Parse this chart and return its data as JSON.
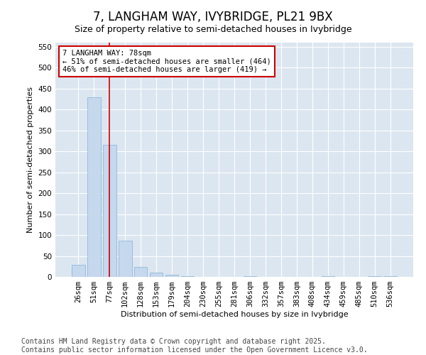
{
  "title": "7, LANGHAM WAY, IVYBRIDGE, PL21 9BX",
  "subtitle": "Size of property relative to semi-detached houses in Ivybridge",
  "xlabel": "Distribution of semi-detached houses by size in Ivybridge",
  "ylabel": "Number of semi-detached properties",
  "categories": [
    "26sqm",
    "51sqm",
    "77sqm",
    "102sqm",
    "128sqm",
    "153sqm",
    "179sqm",
    "204sqm",
    "230sqm",
    "255sqm",
    "281sqm",
    "306sqm",
    "332sqm",
    "357sqm",
    "383sqm",
    "408sqm",
    "434sqm",
    "459sqm",
    "485sqm",
    "510sqm",
    "536sqm"
  ],
  "values": [
    29,
    430,
    315,
    87,
    24,
    10,
    5,
    2,
    0,
    0,
    0,
    2,
    0,
    0,
    0,
    0,
    2,
    0,
    0,
    2,
    2
  ],
  "bar_color": "#c5d8ee",
  "bar_edge_color": "#90b8d8",
  "vline_x_index": 2,
  "vline_color": "#cc0000",
  "annotation_title": "7 LANGHAM WAY: 78sqm",
  "annotation_line1": "← 51% of semi-detached houses are smaller (464)",
  "annotation_line2": "46% of semi-detached houses are larger (419) →",
  "annotation_box_facecolor": "#ffffff",
  "annotation_box_edgecolor": "#cc0000",
  "ylim": [
    0,
    560
  ],
  "yticks": [
    0,
    50,
    100,
    150,
    200,
    250,
    300,
    350,
    400,
    450,
    500,
    550
  ],
  "bg_color": "#dce6f0",
  "fig_bg_color": "#ffffff",
  "footer": "Contains HM Land Registry data © Crown copyright and database right 2025.\nContains public sector information licensed under the Open Government Licence v3.0.",
  "title_fontsize": 12,
  "subtitle_fontsize": 9,
  "axis_label_fontsize": 8,
  "tick_fontsize": 7.5,
  "footer_fontsize": 7,
  "annotation_fontsize": 7.5
}
